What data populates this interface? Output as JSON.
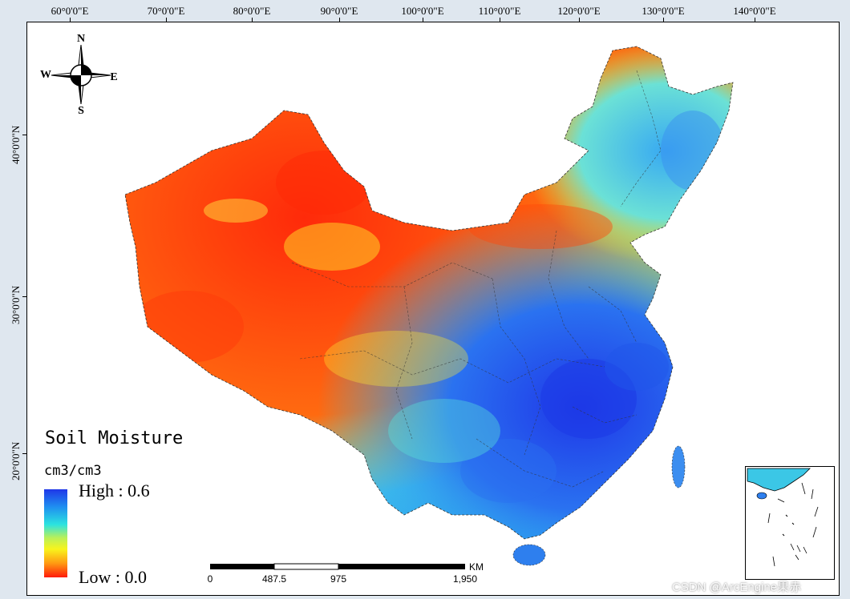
{
  "map": {
    "title": "Soil Moisture",
    "unit": "cm3/cm3",
    "legend_high": "High : 0.6",
    "legend_low": "Low : 0.0",
    "legend_colors": [
      "#1f37e8",
      "#1f8ff0",
      "#2be3e0",
      "#b9f05a",
      "#f8f41c",
      "#ff9a12",
      "#ff1a0a"
    ]
  },
  "longitude_labels": [
    "60°0'0\"E",
    "70°0'0\"E",
    "80°0'0\"E",
    "90°0'0\"E",
    "100°0'0\"E",
    "110°0'0\"E",
    "120°0'0\"E",
    "130°0'0\"E",
    "140°0'0\"E"
  ],
  "latitude_labels": [
    "40°0'0\"N",
    "30°0'0\"N",
    "20°0'0\"N"
  ],
  "compass": {
    "north": "N",
    "south": "S",
    "east": "E",
    "west": "W"
  },
  "scalebar": {
    "unit": "KM",
    "labels": [
      "0",
      "487.5",
      "975",
      "1,950"
    ]
  },
  "watermark": "CSDN @ArcEngine果赤"
}
